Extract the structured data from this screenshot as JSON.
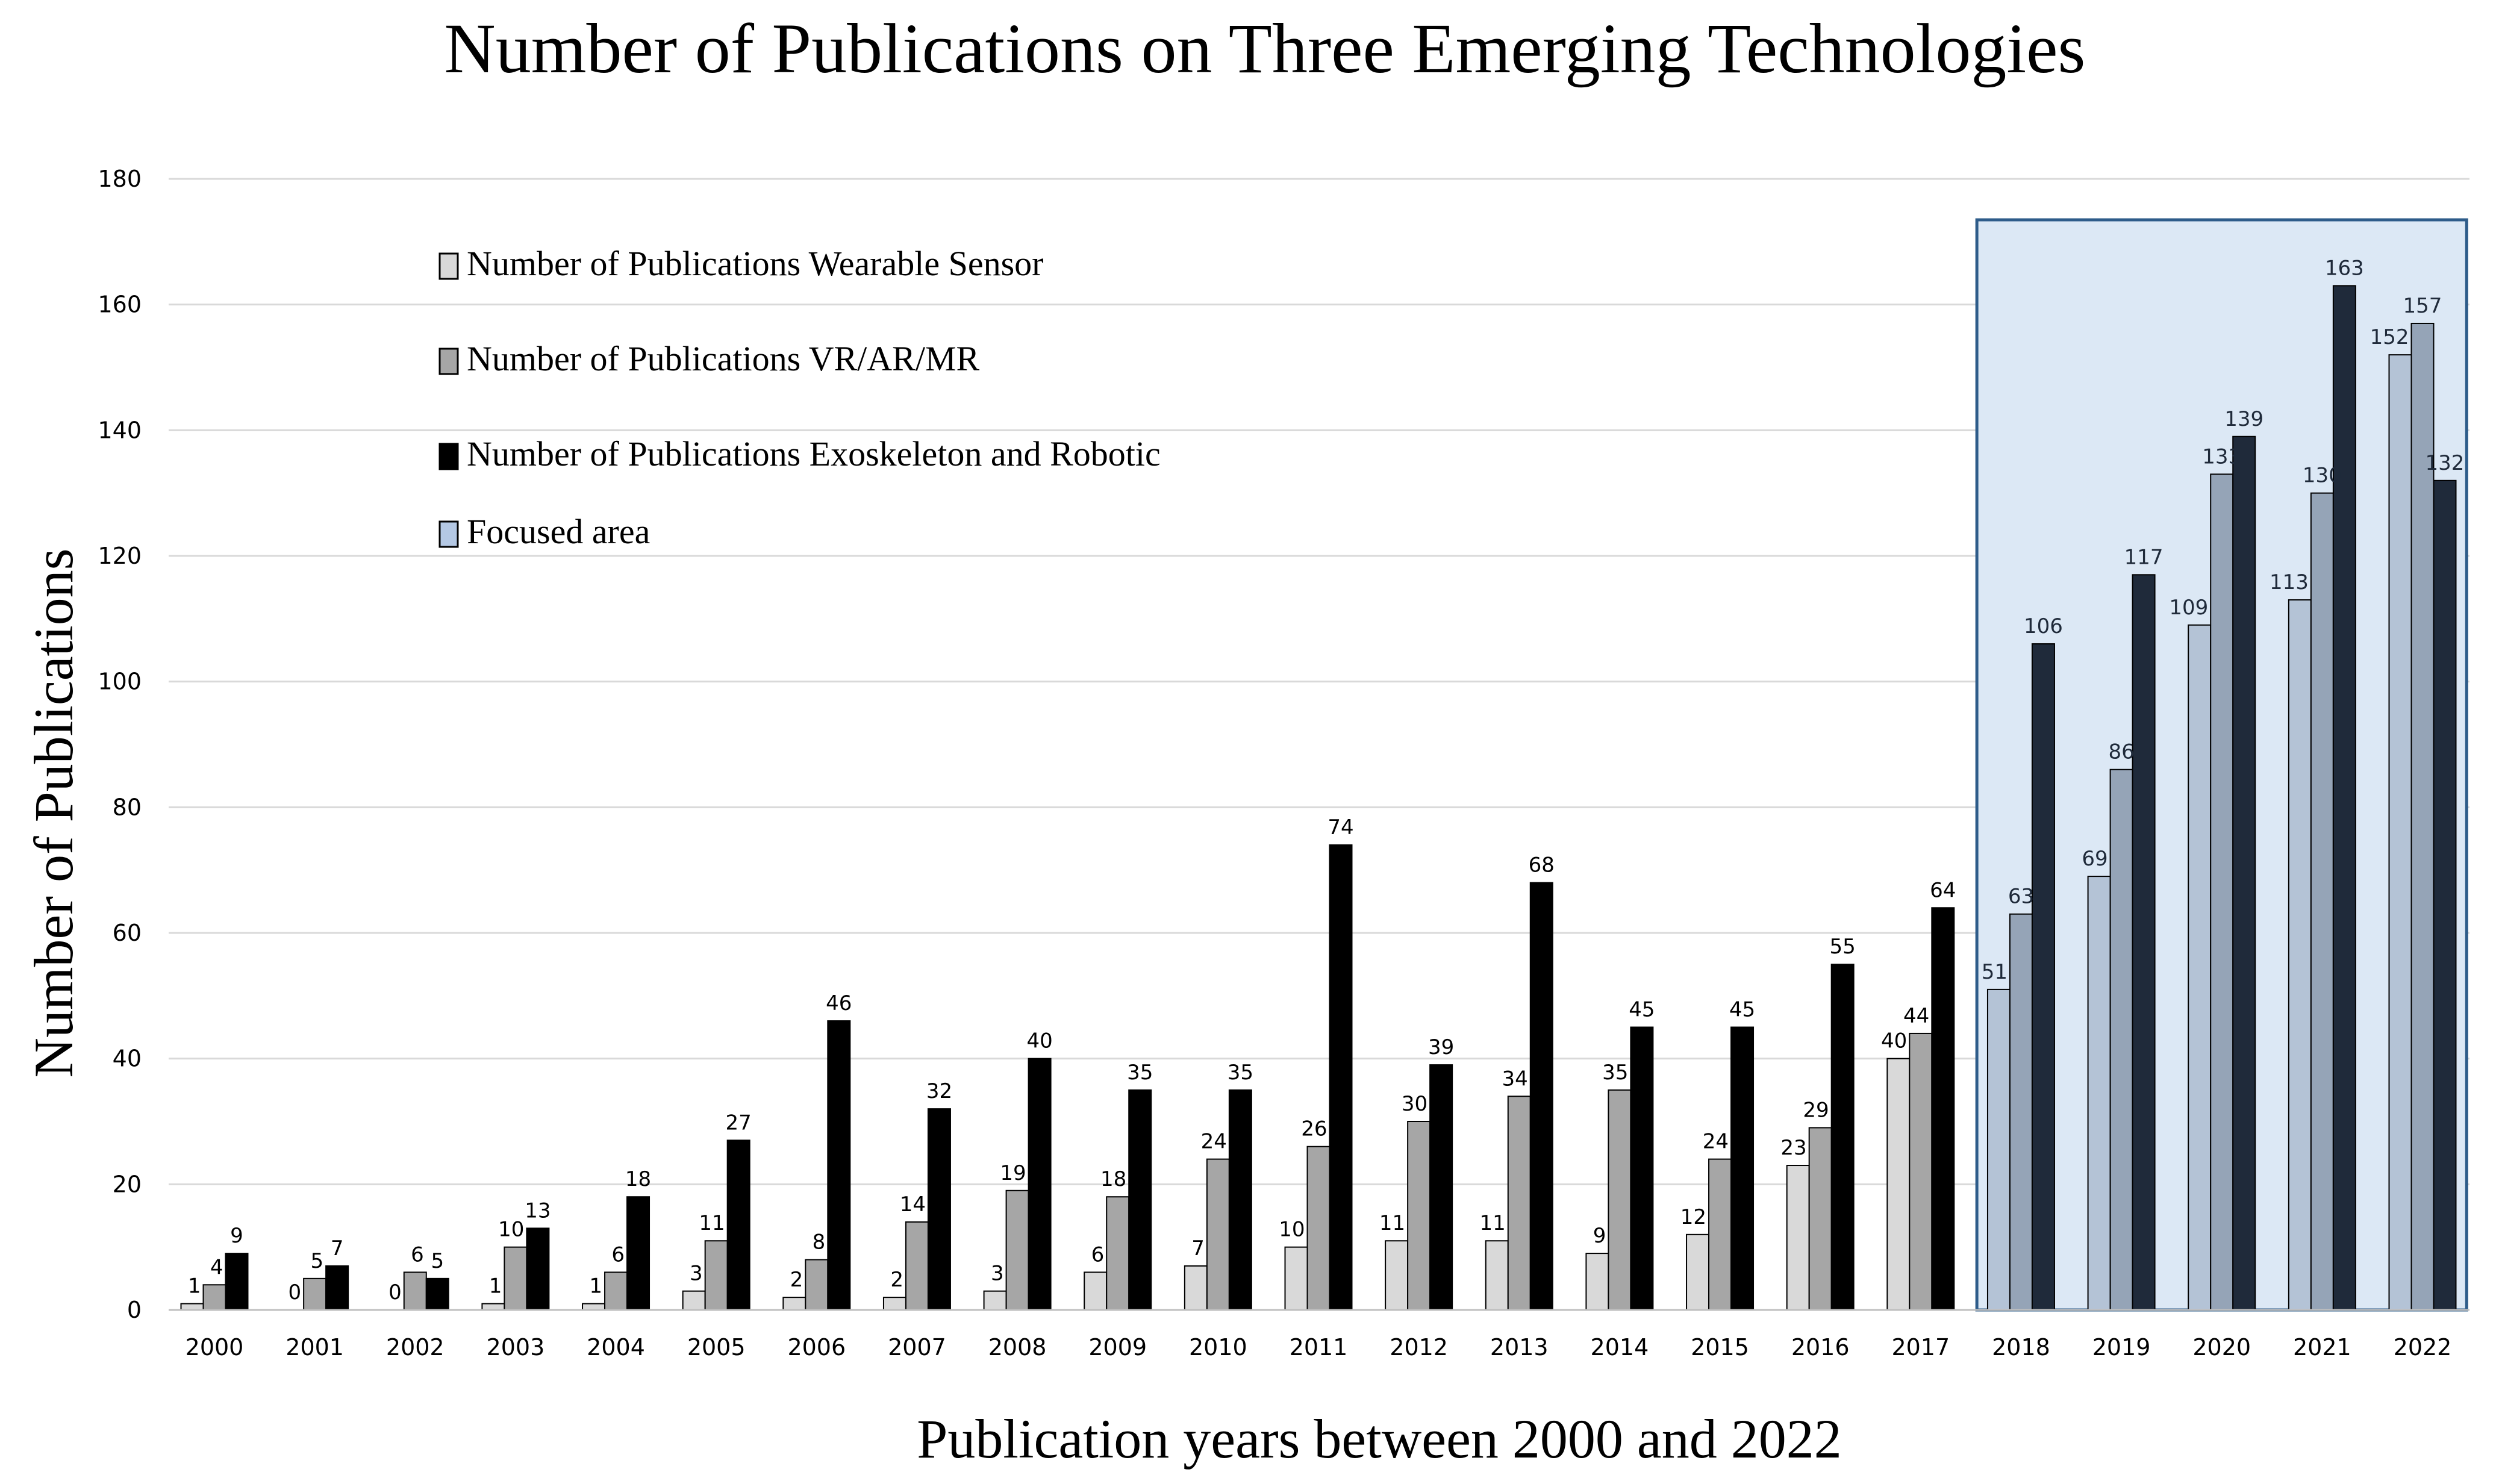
{
  "chart_data": {
    "type": "bar",
    "title": "Number of Publications on Three Emerging Technologies",
    "xlabel": "Publication years between 2000 and 2022",
    "ylabel": "Number of Publications",
    "ylim": [
      0,
      180
    ],
    "yticks": [
      0,
      20,
      40,
      60,
      80,
      100,
      120,
      140,
      160,
      180
    ],
    "grid": true,
    "categories": [
      "2000",
      "2001",
      "2002",
      "2003",
      "2004",
      "2005",
      "2006",
      "2007",
      "2008",
      "2009",
      "2010",
      "2011",
      "2012",
      "2013",
      "2014",
      "2015",
      "2016",
      "2017",
      "2018",
      "2019",
      "2020",
      "2021",
      "2022"
    ],
    "series": [
      {
        "name": "Number of Publications Wearable Sensor",
        "values": [
          1,
          0,
          0,
          1,
          1,
          3,
          2,
          2,
          3,
          6,
          7,
          10,
          11,
          11,
          9,
          12,
          23,
          40,
          51,
          69,
          109,
          113,
          152
        ]
      },
      {
        "name": "Number of Publications VR/AR/MR",
        "values": [
          4,
          5,
          6,
          10,
          6,
          11,
          8,
          14,
          19,
          18,
          24,
          26,
          30,
          34,
          35,
          24,
          29,
          44,
          63,
          86,
          133,
          130,
          157
        ]
      },
      {
        "name": "Number of Publications Exoskeleton and Robotic",
        "values": [
          9,
          7,
          5,
          13,
          18,
          27,
          46,
          32,
          40,
          35,
          35,
          74,
          39,
          68,
          45,
          45,
          55,
          64,
          106,
          117,
          139,
          163,
          132
        ]
      }
    ],
    "focused_area": {
      "label": "Focused area",
      "from": "2018",
      "to": "2022"
    },
    "legend_position": "top-left"
  },
  "colors": {
    "wearable": "#d9d9d9",
    "vr": "#a6a6a6",
    "exo": "#000000",
    "wearable_focus": "#b4c3d6",
    "vr_focus": "#95a4b7",
    "exo_focus": "#1f2a3a",
    "focus_fill": "#dce8f5",
    "focus_border": "#2e5c8a",
    "grid": "#d9d9d9"
  }
}
